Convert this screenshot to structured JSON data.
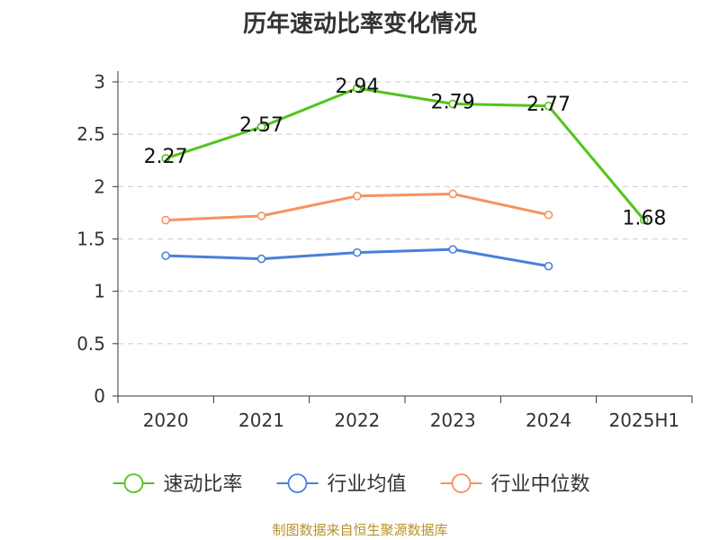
{
  "chart_data": {
    "type": "line",
    "title": "历年速动比率变化情况",
    "categories": [
      "2020",
      "2021",
      "2022",
      "2023",
      "2024",
      "2025H1"
    ],
    "ylim": [
      0,
      3
    ],
    "yticks": [
      0,
      0.5,
      1,
      1.5,
      2,
      2.5,
      3
    ],
    "ytick_labels": [
      "0",
      "0.5",
      "1",
      "1.5",
      "2",
      "2.5",
      "3"
    ],
    "grid": true,
    "legend_position": "bottom",
    "series": [
      {
        "name": "速动比率",
        "color": "#52c41a",
        "values": [
          2.27,
          2.57,
          2.94,
          2.79,
          2.77,
          1.68
        ],
        "labels": [
          "2.27",
          "2.57",
          "2.94",
          "2.79",
          "2.77",
          "1.68"
        ]
      },
      {
        "name": "行业均值",
        "color": "#4a7fdb",
        "values": [
          1.34,
          1.31,
          1.37,
          1.4,
          1.24,
          null
        ]
      },
      {
        "name": "行业中位数",
        "color": "#f79260",
        "values": [
          1.68,
          1.72,
          1.91,
          1.93,
          1.73,
          null
        ]
      }
    ]
  },
  "source": "制图数据来自恒生聚源数据库"
}
